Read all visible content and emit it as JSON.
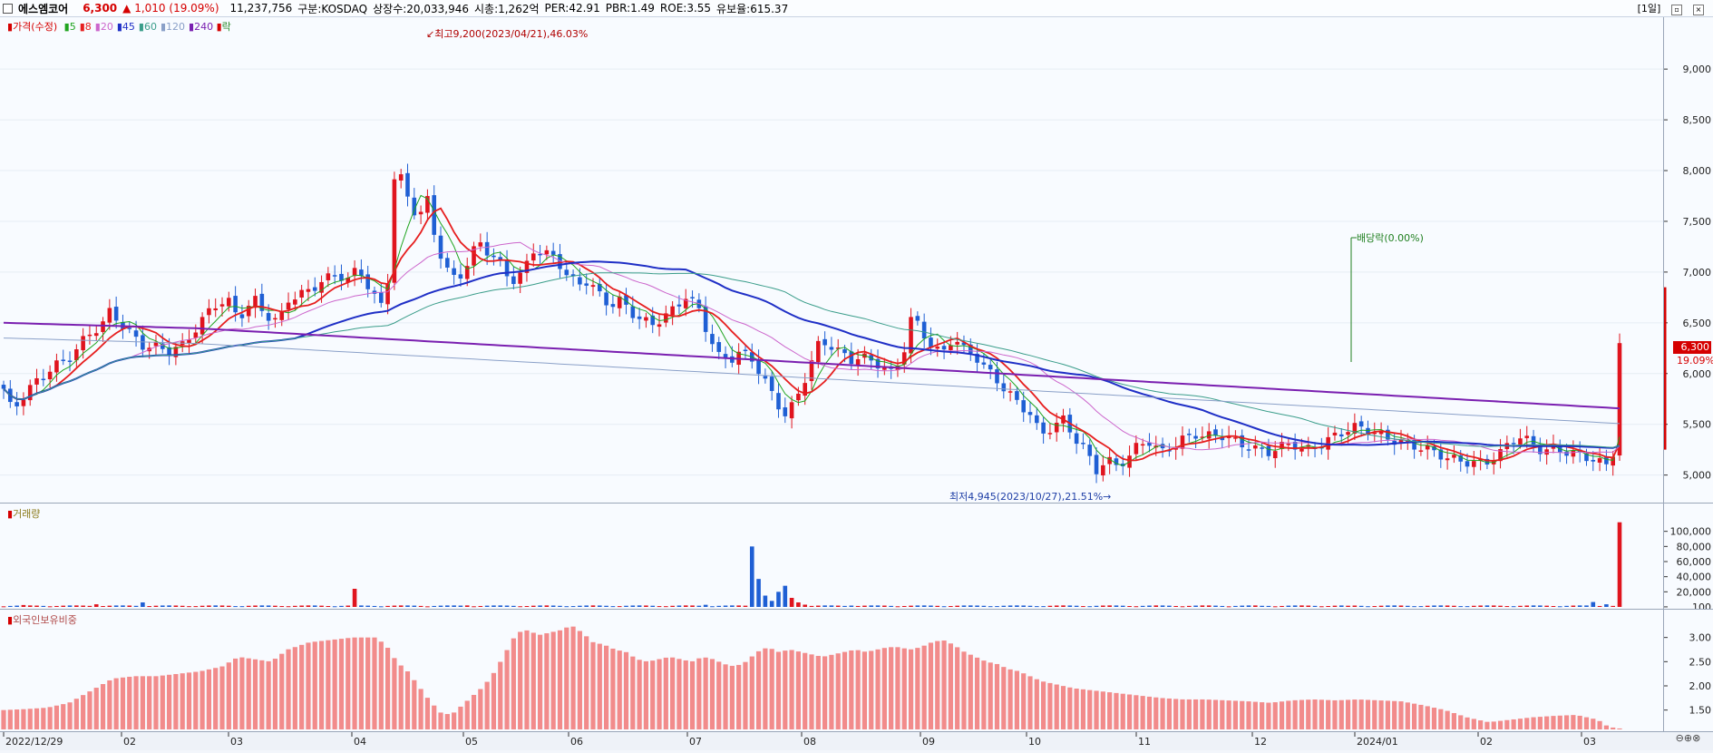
{
  "header": {
    "name": "에스엠코어",
    "price": "6,300",
    "change": "▲ 1,010 (19.09%)",
    "volume": "11,237,756",
    "market": "구분:KOSDAQ",
    "shares": "상장수:20,033,946",
    "mktcap": "시총:1,262억",
    "per": "PER:42.91",
    "pbr": "PBR:1.49",
    "roe": "ROE:3.55",
    "float": "유보율:615.37",
    "period": "[1일]"
  },
  "legend": {
    "price_label": "가격(수정)",
    "ma": [
      {
        "label": "5",
        "color": "#1fa41f"
      },
      {
        "label": "8",
        "color": "#e61e1e"
      },
      {
        "label": "20",
        "color": "#cc66cc"
      },
      {
        "label": "45",
        "color": "#1f2fc6"
      },
      {
        "label": "60",
        "color": "#3a9d8a"
      },
      {
        "label": "120",
        "color": "#8aa0c8"
      },
      {
        "label": "240",
        "color": "#7a1fb0"
      }
    ],
    "ex_label": "락"
  },
  "annotations": {
    "high": "최고9,200(2023/04/21),46.03%",
    "low": "최저4,945(2023/10/27),21.51%",
    "dividend": "배당락(0.00%)",
    "current_price": "6,300",
    "current_pct": "19.09%"
  },
  "volume_panel": {
    "title": "거래량"
  },
  "foreign_panel": {
    "title": "외국인보유비중"
  },
  "colors": {
    "up": "#e0141e",
    "down": "#1f5fd4",
    "foreign_bar": "#f28b8b"
  },
  "chart_data": [
    {
      "type": "candlestick",
      "title": "가격(수정)",
      "x_ticks": [
        "2022/12/29",
        "02",
        "03",
        "04",
        "05",
        "06",
        "07",
        "08",
        "09",
        "10",
        "11",
        "12",
        "2024/01",
        "02",
        "03"
      ],
      "y_ticks": [
        "5,000",
        "5,500",
        "6,000",
        "6,500",
        "7,000",
        "7,500",
        "8,000",
        "8,500",
        "9,000"
      ],
      "ylim": [
        4800,
        9350
      ],
      "close_trace": [
        [
          0,
          5850
        ],
        [
          8,
          5600
        ],
        [
          18,
          5750
        ],
        [
          25,
          5850
        ],
        [
          35,
          5950
        ],
        [
          45,
          6100
        ],
        [
          55,
          6150
        ],
        [
          62,
          6200
        ],
        [
          70,
          6300
        ],
        [
          80,
          6380
        ],
        [
          90,
          6450
        ],
        [
          98,
          6600
        ],
        [
          106,
          6500
        ],
        [
          118,
          6400
        ],
        [
          128,
          6300
        ],
        [
          140,
          6280
        ],
        [
          150,
          6200
        ],
        [
          165,
          6250
        ],
        [
          180,
          6500
        ],
        [
          192,
          6700
        ],
        [
          205,
          6750
        ],
        [
          215,
          6550
        ],
        [
          230,
          6700
        ],
        [
          240,
          6550
        ],
        [
          252,
          6500
        ],
        [
          260,
          6750
        ],
        [
          270,
          6800
        ],
        [
          282,
          6850
        ],
        [
          292,
          6900
        ],
        [
          305,
          6950
        ],
        [
          315,
          6900
        ],
        [
          325,
          7050
        ],
        [
          338,
          6800
        ],
        [
          350,
          6650
        ],
        [
          358,
          7950
        ],
        [
          365,
          7900
        ],
        [
          372,
          7650
        ],
        [
          380,
          7500
        ],
        [
          388,
          7700
        ],
        [
          396,
          7300
        ],
        [
          405,
          7050
        ],
        [
          415,
          6950
        ],
        [
          425,
          7100
        ],
        [
          435,
          7300
        ],
        [
          445,
          7150
        ],
        [
          455,
          7050
        ],
        [
          465,
          6900
        ],
        [
          475,
          7000
        ],
        [
          485,
          7250
        ],
        [
          495,
          7200
        ],
        [
          505,
          7150
        ],
        [
          515,
          6950
        ],
        [
          525,
          6850
        ],
        [
          535,
          6900
        ],
        [
          545,
          6800
        ],
        [
          555,
          6700
        ],
        [
          565,
          6750
        ],
        [
          575,
          6600
        ],
        [
          585,
          6500
        ],
        [
          595,
          6450
        ],
        [
          605,
          6550
        ],
        [
          615,
          6650
        ],
        [
          625,
          6800
        ],
        [
          635,
          6700
        ],
        [
          645,
          6400
        ],
        [
          655,
          6150
        ],
        [
          665,
          6100
        ],
        [
          675,
          6200
        ],
        [
          685,
          6150
        ],
        [
          695,
          6000
        ],
        [
          705,
          5800
        ],
        [
          715,
          5600
        ],
        [
          725,
          5700
        ],
        [
          735,
          5950
        ],
        [
          745,
          6250
        ],
        [
          755,
          6300
        ],
        [
          765,
          6250
        ],
        [
          775,
          6150
        ],
        [
          785,
          6200
        ],
        [
          795,
          6100
        ],
        [
          805,
          6050
        ],
        [
          815,
          5950
        ],
        [
          825,
          6250
        ],
        [
          832,
          6600
        ],
        [
          840,
          6450
        ],
        [
          850,
          6300
        ],
        [
          860,
          6200
        ],
        [
          870,
          6350
        ],
        [
          880,
          6200
        ],
        [
          890,
          6150
        ],
        [
          900,
          6050
        ],
        [
          910,
          5950
        ],
        [
          920,
          5850
        ],
        [
          930,
          5700
        ],
        [
          940,
          5600
        ],
        [
          950,
          5350
        ],
        [
          960,
          5450
        ],
        [
          970,
          5550
        ],
        [
          980,
          5400
        ],
        [
          990,
          5300
        ],
        [
          1000,
          5050
        ],
        [
          1010,
          5150
        ],
        [
          1020,
          5050
        ],
        [
          1030,
          5150
        ],
        [
          1040,
          5300
        ],
        [
          1050,
          5350
        ],
        [
          1060,
          5250
        ],
        [
          1070,
          5300
        ],
        [
          1080,
          5350
        ],
        [
          1090,
          5380
        ],
        [
          1100,
          5350
        ],
        [
          1110,
          5380
        ],
        [
          1120,
          5400
        ],
        [
          1130,
          5350
        ],
        [
          1140,
          5300
        ],
        [
          1150,
          5250
        ],
        [
          1160,
          5200
        ],
        [
          1170,
          5250
        ],
        [
          1180,
          5300
        ],
        [
          1190,
          5250
        ],
        [
          1200,
          5300
        ],
        [
          1210,
          5350
        ],
        [
          1220,
          5400
        ],
        [
          1230,
          5420
        ],
        [
          1240,
          5450
        ],
        [
          1250,
          5420
        ],
        [
          1260,
          5400
        ],
        [
          1270,
          5380
        ],
        [
          1280,
          5350
        ],
        [
          1290,
          5300
        ],
        [
          1300,
          5250
        ],
        [
          1310,
          5200
        ],
        [
          1320,
          5150
        ],
        [
          1330,
          5150
        ],
        [
          1340,
          5150
        ],
        [
          1350,
          5150
        ],
        [
          1360,
          5150
        ],
        [
          1370,
          5200
        ],
        [
          1380,
          5300
        ],
        [
          1390,
          5350
        ],
        [
          1400,
          5300
        ],
        [
          1410,
          5250
        ],
        [
          1420,
          5300
        ],
        [
          1430,
          5250
        ],
        [
          1440,
          5200
        ],
        [
          1450,
          5150
        ],
        [
          1460,
          5100
        ],
        [
          1470,
          5080
        ],
        [
          1476,
          5300
        ],
        [
          1480,
          6300
        ]
      ]
    },
    {
      "type": "bar",
      "title": "거래량",
      "y_ticks": [
        "100",
        "20,000",
        "40,000",
        "60,000",
        "80,000",
        "100,000"
      ],
      "ylim": [
        0,
        120000
      ]
    },
    {
      "type": "bar",
      "title": "외국인보유비중",
      "y_ticks": [
        "1.50",
        "2.00",
        "2.50",
        "3.00"
      ],
      "ylim": [
        1.1,
        3.35
      ],
      "trace": [
        [
          0,
          1.5
        ],
        [
          20,
          1.52
        ],
        [
          40,
          1.55
        ],
        [
          60,
          1.65
        ],
        [
          80,
          1.9
        ],
        [
          100,
          2.15
        ],
        [
          120,
          2.2
        ],
        [
          140,
          2.2
        ],
        [
          160,
          2.25
        ],
        [
          180,
          2.3
        ],
        [
          200,
          2.4
        ],
        [
          215,
          2.6
        ],
        [
          230,
          2.55
        ],
        [
          245,
          2.5
        ],
        [
          260,
          2.75
        ],
        [
          280,
          2.9
        ],
        [
          300,
          2.95
        ],
        [
          320,
          3.0
        ],
        [
          340,
          3.0
        ],
        [
          350,
          2.85
        ],
        [
          360,
          2.5
        ],
        [
          370,
          2.3
        ],
        [
          380,
          2.0
        ],
        [
          390,
          1.7
        ],
        [
          400,
          1.45
        ],
        [
          410,
          1.4
        ],
        [
          420,
          1.6
        ],
        [
          430,
          1.8
        ],
        [
          440,
          2.0
        ],
        [
          450,
          2.3
        ],
        [
          460,
          2.7
        ],
        [
          470,
          3.1
        ],
        [
          480,
          3.15
        ],
        [
          490,
          3.05
        ],
        [
          500,
          3.1
        ],
        [
          510,
          3.15
        ],
        [
          520,
          3.25
        ],
        [
          530,
          3.1
        ],
        [
          540,
          2.9
        ],
        [
          550,
          2.85
        ],
        [
          560,
          2.75
        ],
        [
          570,
          2.7
        ],
        [
          580,
          2.55
        ],
        [
          590,
          2.5
        ],
        [
          600,
          2.55
        ],
        [
          610,
          2.6
        ],
        [
          620,
          2.55
        ],
        [
          630,
          2.5
        ],
        [
          640,
          2.6
        ],
        [
          650,
          2.55
        ],
        [
          660,
          2.45
        ],
        [
          670,
          2.4
        ],
        [
          680,
          2.5
        ],
        [
          690,
          2.7
        ],
        [
          700,
          2.8
        ],
        [
          710,
          2.7
        ],
        [
          720,
          2.75
        ],
        [
          730,
          2.7
        ],
        [
          740,
          2.65
        ],
        [
          750,
          2.6
        ],
        [
          760,
          2.65
        ],
        [
          770,
          2.7
        ],
        [
          780,
          2.75
        ],
        [
          790,
          2.7
        ],
        [
          800,
          2.75
        ],
        [
          810,
          2.8
        ],
        [
          820,
          2.8
        ],
        [
          830,
          2.75
        ],
        [
          840,
          2.8
        ],
        [
          850,
          2.9
        ],
        [
          860,
          2.95
        ],
        [
          870,
          2.85
        ],
        [
          880,
          2.7
        ],
        [
          890,
          2.6
        ],
        [
          900,
          2.5
        ],
        [
          910,
          2.45
        ],
        [
          920,
          2.35
        ],
        [
          930,
          2.3
        ],
        [
          940,
          2.2
        ],
        [
          950,
          2.1
        ],
        [
          960,
          2.05
        ],
        [
          980,
          1.95
        ],
        [
          1000,
          1.9
        ],
        [
          1020,
          1.85
        ],
        [
          1040,
          1.8
        ],
        [
          1060,
          1.75
        ],
        [
          1080,
          1.72
        ],
        [
          1100,
          1.72
        ],
        [
          1120,
          1.7
        ],
        [
          1140,
          1.68
        ],
        [
          1160,
          1.65
        ],
        [
          1180,
          1.7
        ],
        [
          1200,
          1.72
        ],
        [
          1220,
          1.7
        ],
        [
          1240,
          1.72
        ],
        [
          1260,
          1.7
        ],
        [
          1280,
          1.68
        ],
        [
          1300,
          1.6
        ],
        [
          1320,
          1.5
        ],
        [
          1340,
          1.35
        ],
        [
          1360,
          1.25
        ],
        [
          1380,
          1.3
        ],
        [
          1400,
          1.35
        ],
        [
          1420,
          1.38
        ],
        [
          1440,
          1.4
        ],
        [
          1450,
          1.35
        ],
        [
          1460,
          1.3
        ],
        [
          1470,
          1.15
        ],
        [
          1480,
          1.12
        ]
      ]
    }
  ]
}
